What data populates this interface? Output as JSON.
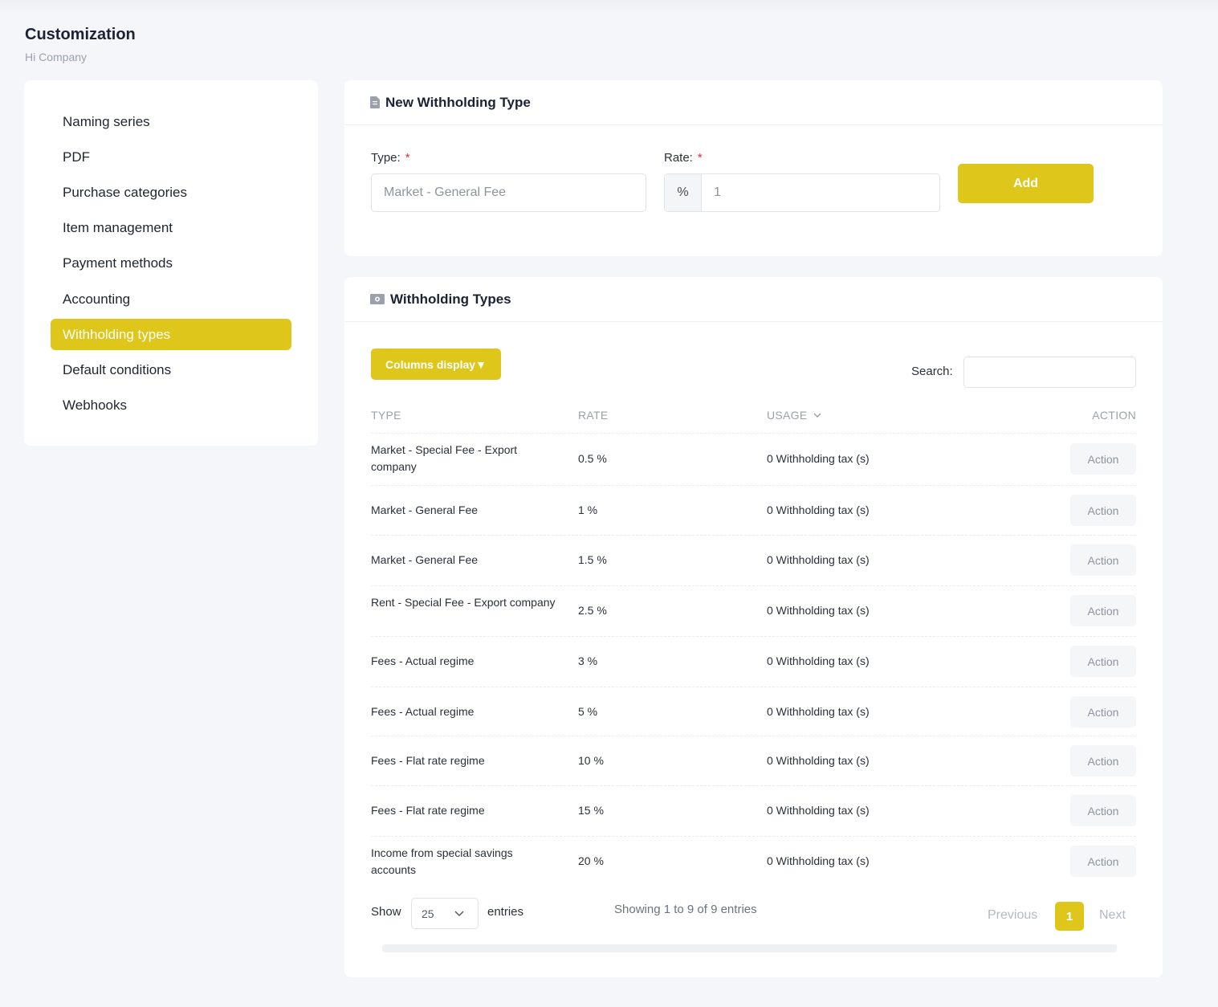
{
  "page": {
    "title": "Customization",
    "subtitle": "Hi Company"
  },
  "sidebar": {
    "items": [
      {
        "label": "Naming series"
      },
      {
        "label": "PDF"
      },
      {
        "label": "Purchase categories"
      },
      {
        "label": "Item management"
      },
      {
        "label": "Payment methods"
      },
      {
        "label": "Accounting"
      },
      {
        "label": "Withholding types",
        "active": true
      },
      {
        "label": "Default conditions"
      },
      {
        "label": "Webhooks"
      }
    ]
  },
  "new_form": {
    "title": "New Withholding Type",
    "icon": "file-invoice-icon",
    "type_label": "Type:",
    "type_placeholder": "Market - General Fee",
    "rate_label": "Rate:",
    "rate_addon": "%",
    "rate_placeholder": "1",
    "required_mark": "*",
    "add_label": "Add"
  },
  "list": {
    "title": "Withholding Types",
    "icon": "money-bill-icon",
    "columns_button": "Columns display▼",
    "search_label": "Search:",
    "headers": {
      "type": "TYPE",
      "rate": "RATE",
      "usage": "USAGE",
      "action": "ACTION"
    },
    "rows": [
      {
        "type": "Market - Special Fee - Export company",
        "rate": "0.5 %",
        "usage": "0 Withholding tax (s)",
        "action": "Action"
      },
      {
        "type": "Market - General Fee",
        "rate": "1 %",
        "usage": "0 Withholding tax (s)",
        "action": "Action"
      },
      {
        "type": "Market - General Fee",
        "rate": "1.5 %",
        "usage": "0 Withholding tax (s)",
        "action": "Action"
      },
      {
        "type": "Rent - Special Fee - Export company",
        "rate": "2.5 %",
        "usage": "0 Withholding tax (s)",
        "action": "Action"
      },
      {
        "type": "Fees - Actual regime",
        "rate": "3 %",
        "usage": "0 Withholding tax (s)",
        "action": "Action"
      },
      {
        "type": "Fees - Actual regime",
        "rate": "5 %",
        "usage": "0 Withholding tax (s)",
        "action": "Action"
      },
      {
        "type": "Fees - Flat rate regime",
        "rate": "10 %",
        "usage": "0 Withholding tax (s)",
        "action": "Action"
      },
      {
        "type": "Fees - Flat rate regime",
        "rate": "15 %",
        "usage": "0 Withholding tax (s)",
        "action": "Action"
      },
      {
        "type": "Income from special savings accounts",
        "rate": "20 %",
        "usage": "0 Withholding tax (s)",
        "action": "Action"
      }
    ],
    "footer": {
      "show_label": "Show",
      "page_size": "25",
      "entries_label": "entries",
      "info": "Showing 1 to 9 of 9 entries",
      "previous": "Previous",
      "current_page": "1",
      "next": "Next"
    }
  },
  "colors": {
    "accent": "#dec61a",
    "background": "#f4f6f9",
    "required": "#e0303a"
  }
}
